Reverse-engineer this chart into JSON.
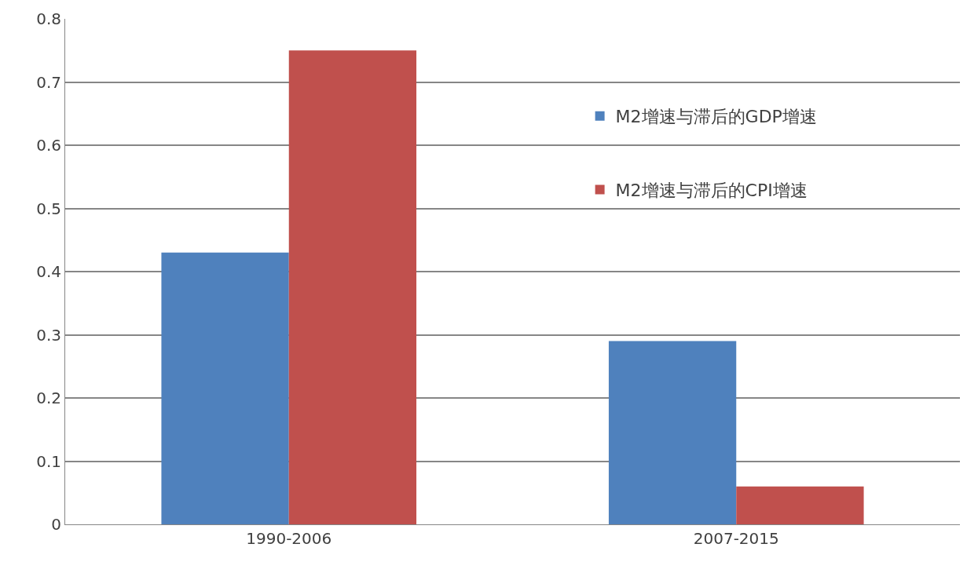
{
  "chart_data": {
    "type": "bar",
    "categories": [
      "1990-2006",
      "2007-2015"
    ],
    "series": [
      {
        "name": "M2增速与滞后的GDP增速",
        "color": "#4f81bd",
        "values": [
          0.43,
          0.29
        ]
      },
      {
        "name": "M2增速与滞后的CPI增速",
        "color": "#c0504d",
        "values": [
          0.75,
          0.06
        ]
      }
    ],
    "ylim": [
      0,
      0.8
    ],
    "yticks": [
      0,
      0.1,
      0.2,
      0.3,
      0.4,
      0.5,
      0.6,
      0.7,
      0.8
    ],
    "grid": "y",
    "legend": "top right"
  }
}
